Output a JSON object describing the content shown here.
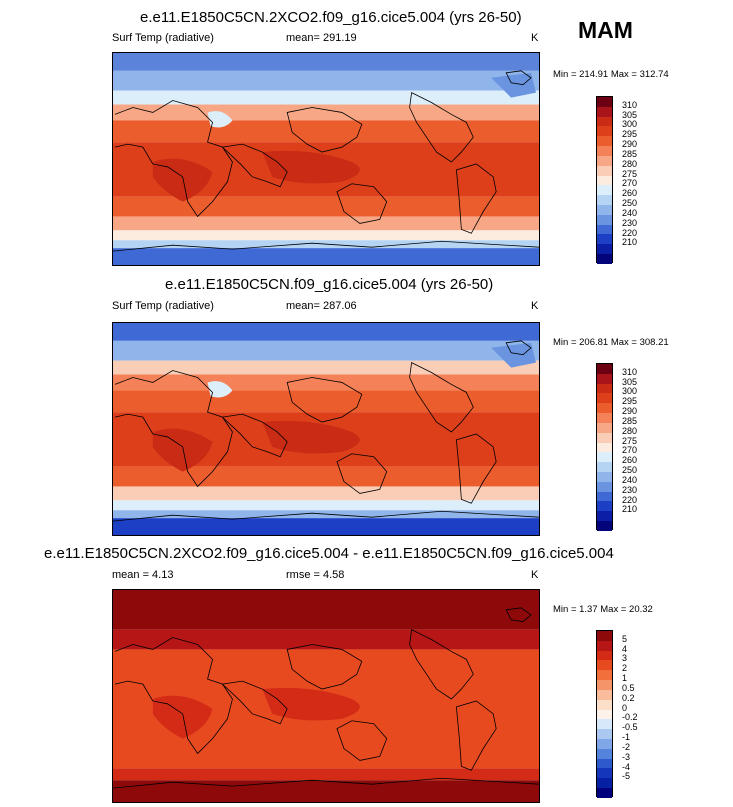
{
  "season": "MAM",
  "colors": {
    "temp": [
      "#6c0012",
      "#a8141a",
      "#c92b14",
      "#dc3f1a",
      "#ec5d2d",
      "#f48157",
      "#f7a786",
      "#f9cdb6",
      "#fcece0",
      "#dceefa",
      "#b5d4f3",
      "#8fb5ea",
      "#6a94e0",
      "#3f6ad6",
      "#1c3fc6",
      "#0c1ea6",
      "#04047a"
    ],
    "diff": [
      "#8e0a0a",
      "#b61616",
      "#d42b17",
      "#e84a20",
      "#f26f3c",
      "#f59468",
      "#f9bd9c",
      "#fcdfc8",
      "#fcf2ea",
      "#d6e8f9",
      "#aac8f0",
      "#7fa6e6",
      "#5483dc",
      "#2c5acd",
      "#1436bb",
      "#0620a4",
      "#00007d"
    ]
  },
  "panels": [
    {
      "title": "e.e11.E1850C5CN.2XCO2.f09_g16.cice5.004 (yrs 26-50)",
      "left_label": "Surf Temp (radiative)",
      "stat_label": "mean= 291.19",
      "unit": "K",
      "minmax": "Min = 214.91 Max = 312.74",
      "levels": [
        "310",
        "305",
        "300",
        "295",
        "290",
        "285",
        "280",
        "275",
        "270",
        "260",
        "250",
        "240",
        "230",
        "220",
        "210"
      ],
      "palette": "temp",
      "kind": "abs"
    },
    {
      "title": "e.e11.E1850C5CN.f09_g16.cice5.004 (yrs 26-50)",
      "left_label": "Surf Temp (radiative)",
      "stat_label": "mean= 287.06",
      "unit": "K",
      "minmax": "Min = 206.81 Max = 308.21",
      "levels": [
        "310",
        "305",
        "300",
        "295",
        "290",
        "285",
        "280",
        "275",
        "270",
        "260",
        "250",
        "240",
        "230",
        "220",
        "210"
      ],
      "palette": "temp",
      "kind": "abs2"
    },
    {
      "title": "e.e11.E1850C5CN.2XCO2.f09_g16.cice5.004 - e.e11.E1850C5CN.f09_g16.cice5.004",
      "left_label": "mean =  4.13",
      "stat_label": "rmse =  4.58",
      "unit": "K",
      "minmax": "Min =  1.37 Max = 20.32",
      "levels": [
        "5",
        "4",
        "3",
        "2",
        "1",
        "0.5",
        "0.2",
        "0",
        "-0.2",
        "-0.5",
        "-1",
        "-2",
        "-3",
        "-4",
        "-5"
      ],
      "palette": "diff",
      "kind": "diff"
    }
  ]
}
